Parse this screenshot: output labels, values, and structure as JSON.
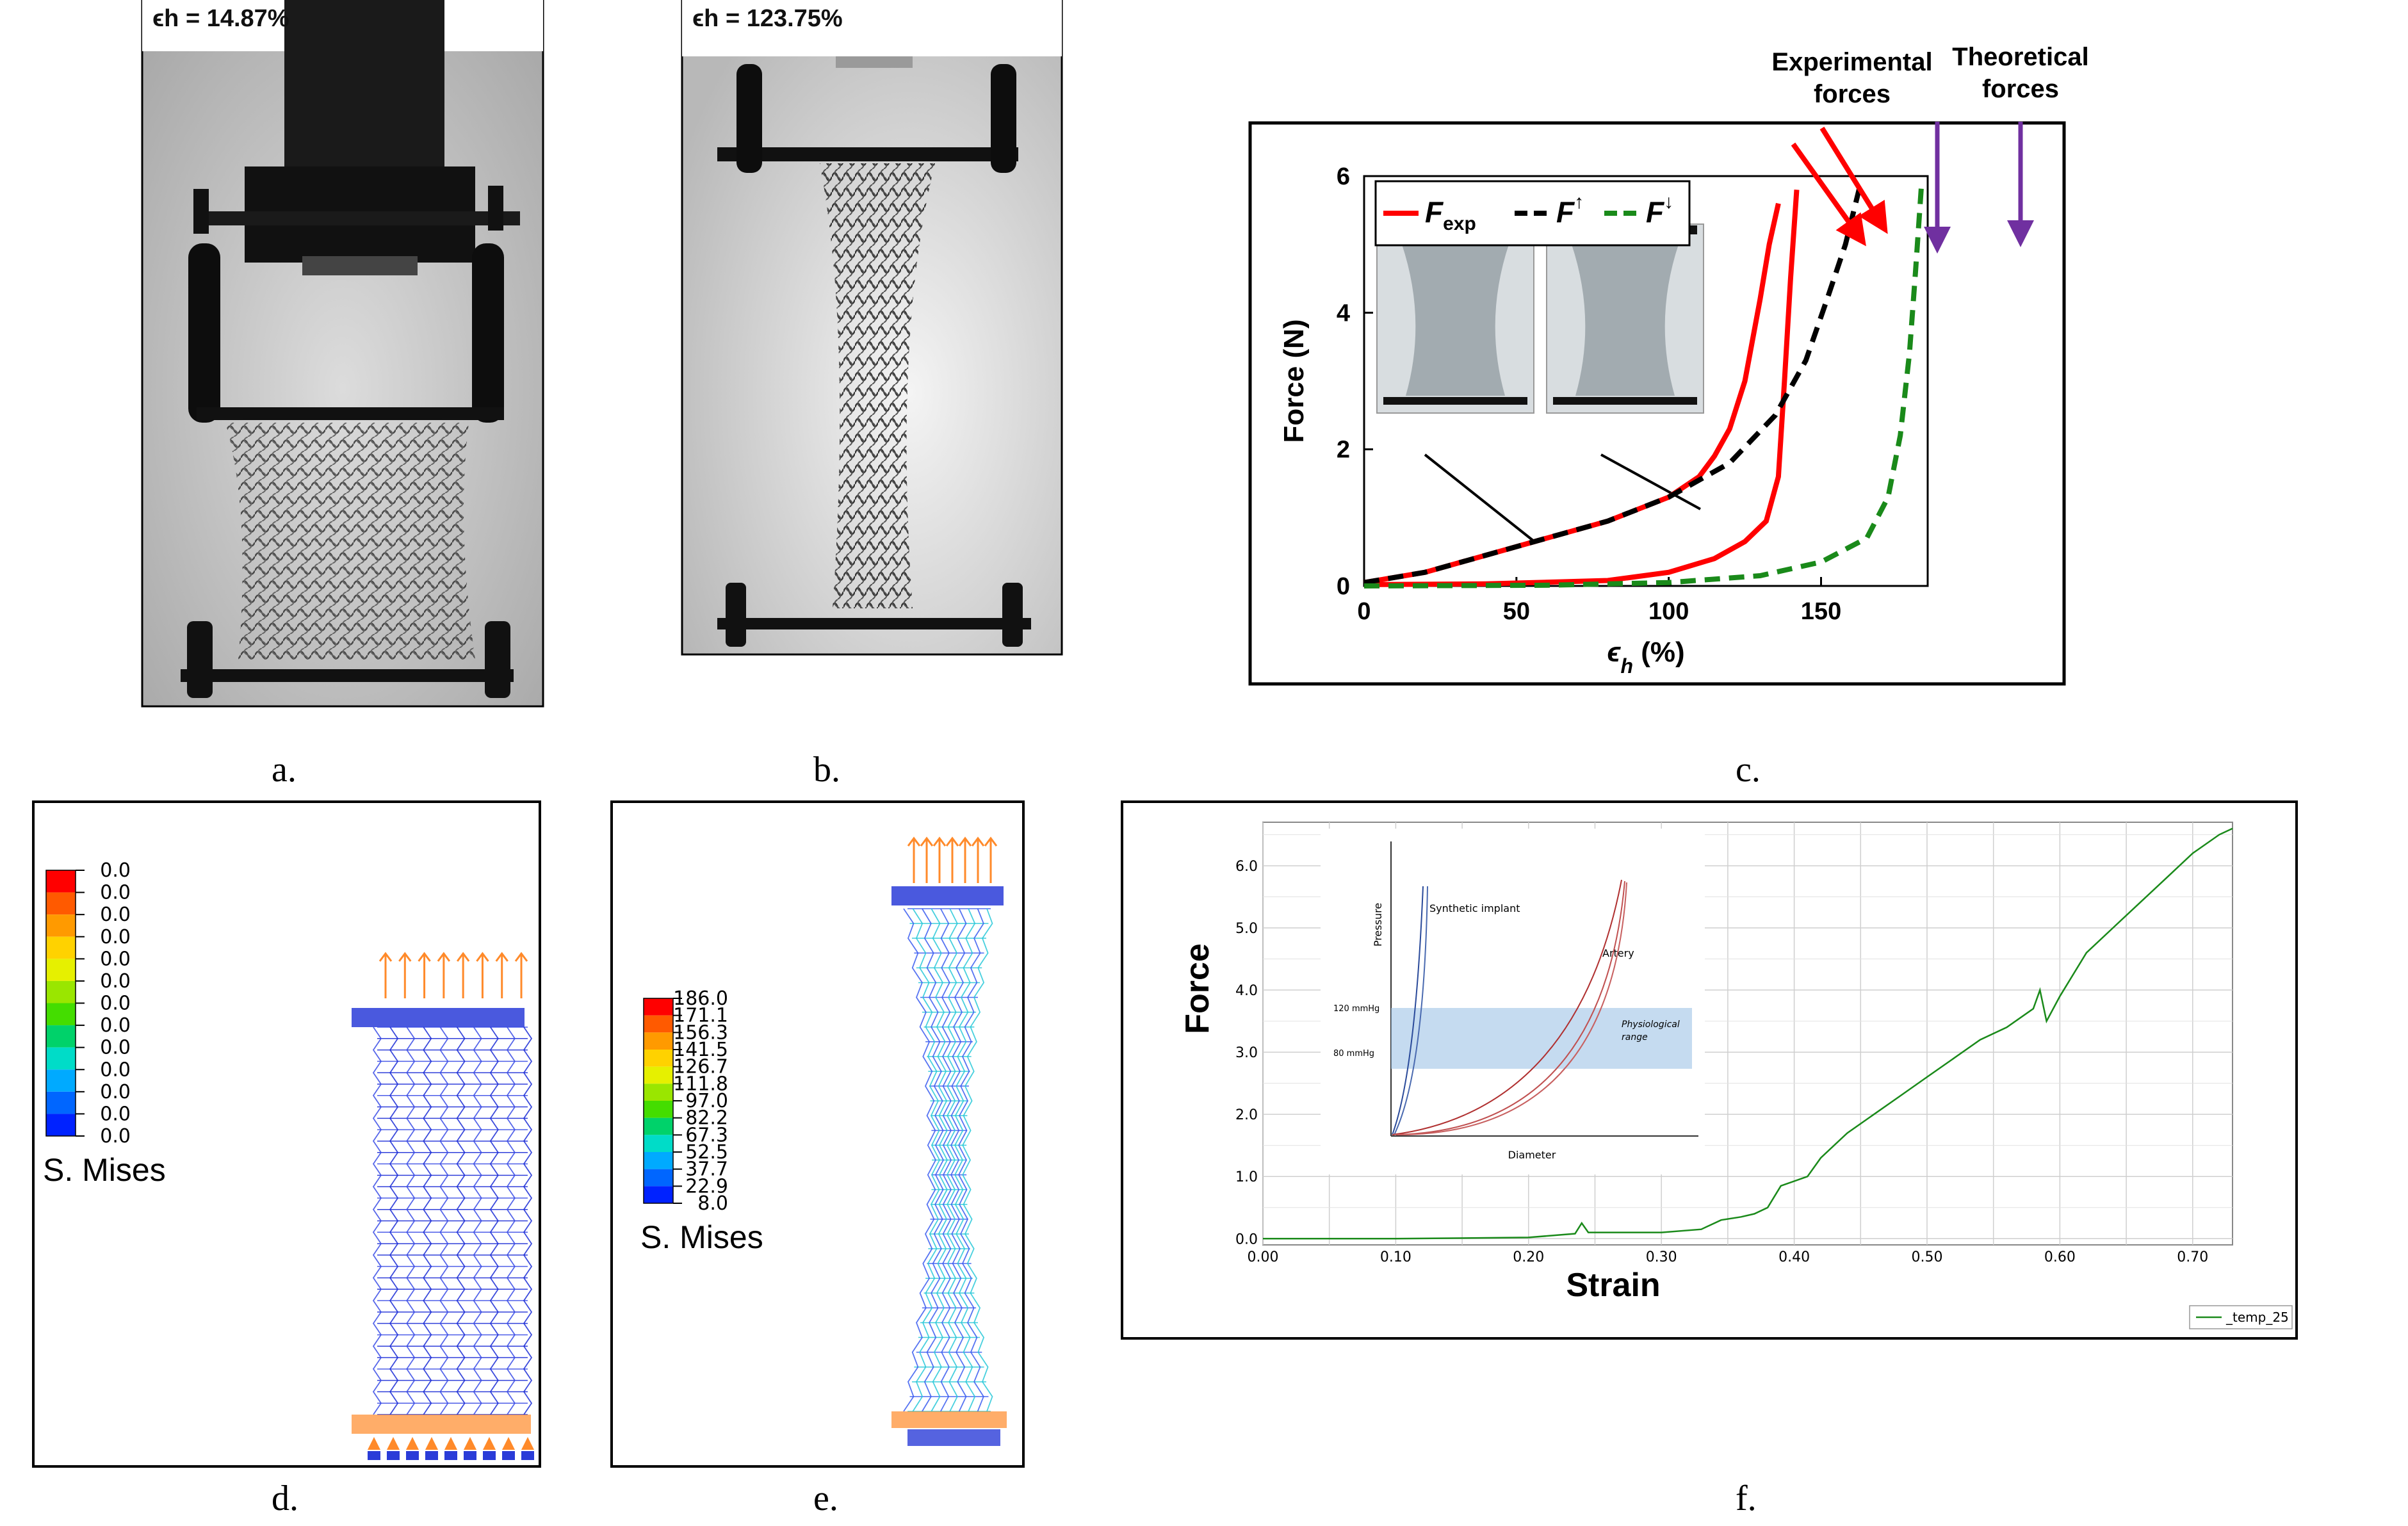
{
  "panels": {
    "a": {
      "label": "ϵh = 14.87%",
      "caption": "a."
    },
    "b": {
      "label": "ϵh = 123.75%",
      "caption": "b."
    },
    "c": {
      "caption": "c.",
      "annotations": {
        "experimental": [
          "Experimental",
          "forces"
        ],
        "theoretical": [
          "Theoretical",
          "forces"
        ]
      },
      "legend": [
        "F",
        "exp",
        "F",
        "↑",
        "F",
        "↓"
      ],
      "colors": {
        "exp": "#ff0000",
        "up": "#000000",
        "down": "#1a8a1a",
        "arrow_red": "#ff0000",
        "arrow_purple": "#7030a0"
      }
    },
    "d": {
      "caption": "d.",
      "legend_values": [
        "0.0",
        "0.0",
        "0.0",
        "0.0",
        "0.0",
        "0.0",
        "0.0",
        "0.0",
        "0.0",
        "0.0",
        "0.0",
        "0.0",
        "0.0"
      ],
      "legend_title": "S. Mises"
    },
    "e": {
      "caption": "e.",
      "legend_values": [
        "186.0",
        "171.1",
        "156.3",
        "141.5",
        "126.7",
        "111.8",
        "97.0",
        "82.2",
        "67.3",
        "52.5",
        "37.7",
        "22.9",
        "8.0"
      ],
      "legend_title": "S. Mises"
    },
    "f": {
      "caption": "f.",
      "legend_label": "_temp_25",
      "inset": {
        "ylabel": "Pressure",
        "xlabel": "Diameter",
        "synthetic": "Synthetic implant",
        "artery": "Artery",
        "physio": [
          "Physiological",
          "range"
        ],
        "p120": "120 mmHg",
        "p80": "80 mmHg"
      }
    }
  },
  "legend_colors": [
    "#ff0000",
    "#ff5a00",
    "#ff9a00",
    "#ffd200",
    "#e6f000",
    "#9ae600",
    "#44dd00",
    "#00d26a",
    "#00dcc8",
    "#00aaff",
    "#0066ff",
    "#0022ff",
    "#0000e0"
  ],
  "chart_data": [
    {
      "type": "line",
      "xlabel": "ϵh (%)",
      "ylabel": "Force (N)",
      "xlim": [
        0,
        185
      ],
      "ylim": [
        0,
        6
      ],
      "xticks": [
        "0",
        "50",
        "100",
        "150"
      ],
      "yticks": [
        "0",
        "2",
        "4",
        "6"
      ],
      "series": [
        {
          "name": "Fexp",
          "style": "solid",
          "color": "#ff0000",
          "points": [
            [
              0,
              0.05
            ],
            [
              20,
              0.2
            ],
            [
              40,
              0.45
            ],
            [
              60,
              0.7
            ],
            [
              80,
              0.95
            ],
            [
              100,
              1.3
            ],
            [
              110,
              1.6
            ],
            [
              115,
              1.9
            ],
            [
              120,
              2.3
            ],
            [
              125,
              3.0
            ],
            [
              130,
              4.2
            ],
            [
              133,
              5.0
            ],
            [
              136,
              5.6
            ]
          ]
        },
        {
          "name": "Fexp",
          "style": "solid",
          "color": "#ff0000",
          "points": [
            [
              0,
              0.02
            ],
            [
              40,
              0.03
            ],
            [
              80,
              0.08
            ],
            [
              100,
              0.2
            ],
            [
              115,
              0.4
            ],
            [
              125,
              0.65
            ],
            [
              132,
              0.95
            ],
            [
              136,
              1.6
            ],
            [
              138,
              3.0
            ],
            [
              140,
              4.5
            ],
            [
              142,
              5.8
            ]
          ]
        },
        {
          "name": "F↑",
          "style": "dashed",
          "color": "#000000",
          "points": [
            [
              0,
              0.05
            ],
            [
              20,
              0.2
            ],
            [
              40,
              0.45
            ],
            [
              60,
              0.7
            ],
            [
              80,
              0.95
            ],
            [
              100,
              1.3
            ],
            [
              120,
              1.8
            ],
            [
              135,
              2.5
            ],
            [
              145,
              3.3
            ],
            [
              152,
              4.2
            ],
            [
              158,
              5.0
            ],
            [
              163,
              5.9
            ]
          ]
        },
        {
          "name": "F↓",
          "style": "dashed",
          "color": "#1a8a1a",
          "points": [
            [
              0,
              0.0
            ],
            [
              60,
              0.01
            ],
            [
              100,
              0.05
            ],
            [
              130,
              0.15
            ],
            [
              150,
              0.35
            ],
            [
              165,
              0.7
            ],
            [
              172,
              1.3
            ],
            [
              176,
              2.2
            ],
            [
              179,
              3.4
            ],
            [
              181,
              4.6
            ],
            [
              183,
              5.9
            ]
          ]
        }
      ]
    },
    {
      "type": "line",
      "xlabel": "Strain",
      "ylabel": "Force",
      "xlim": [
        0.0,
        0.73
      ],
      "ylim": [
        -0.1,
        6.7
      ],
      "xticks": [
        "0.00",
        "0.10",
        "0.20",
        "0.30",
        "0.40",
        "0.50",
        "0.60",
        "0.70"
      ],
      "yticks": [
        "0.0",
        "1.0",
        "2.0",
        "3.0",
        "4.0",
        "5.0",
        "6.0"
      ],
      "series": [
        {
          "name": "_temp_25",
          "color": "#1a8a1a",
          "points": [
            [
              0,
              0.0
            ],
            [
              0.1,
              0.0
            ],
            [
              0.2,
              0.02
            ],
            [
              0.235,
              0.08
            ],
            [
              0.24,
              0.25
            ],
            [
              0.245,
              0.1
            ],
            [
              0.3,
              0.1
            ],
            [
              0.33,
              0.15
            ],
            [
              0.345,
              0.3
            ],
            [
              0.36,
              0.35
            ],
            [
              0.37,
              0.4
            ],
            [
              0.38,
              0.5
            ],
            [
              0.39,
              0.85
            ],
            [
              0.41,
              1.0
            ],
            [
              0.42,
              1.3
            ],
            [
              0.44,
              1.7
            ],
            [
              0.46,
              2.0
            ],
            [
              0.48,
              2.3
            ],
            [
              0.5,
              2.6
            ],
            [
              0.52,
              2.9
            ],
            [
              0.54,
              3.2
            ],
            [
              0.56,
              3.4
            ],
            [
              0.58,
              3.7
            ],
            [
              0.585,
              4.0
            ],
            [
              0.59,
              3.5
            ],
            [
              0.6,
              3.9
            ],
            [
              0.62,
              4.6
            ],
            [
              0.64,
              5.0
            ],
            [
              0.66,
              5.4
            ],
            [
              0.68,
              5.8
            ],
            [
              0.7,
              6.2
            ],
            [
              0.72,
              6.5
            ],
            [
              0.73,
              6.6
            ]
          ]
        }
      ]
    }
  ]
}
